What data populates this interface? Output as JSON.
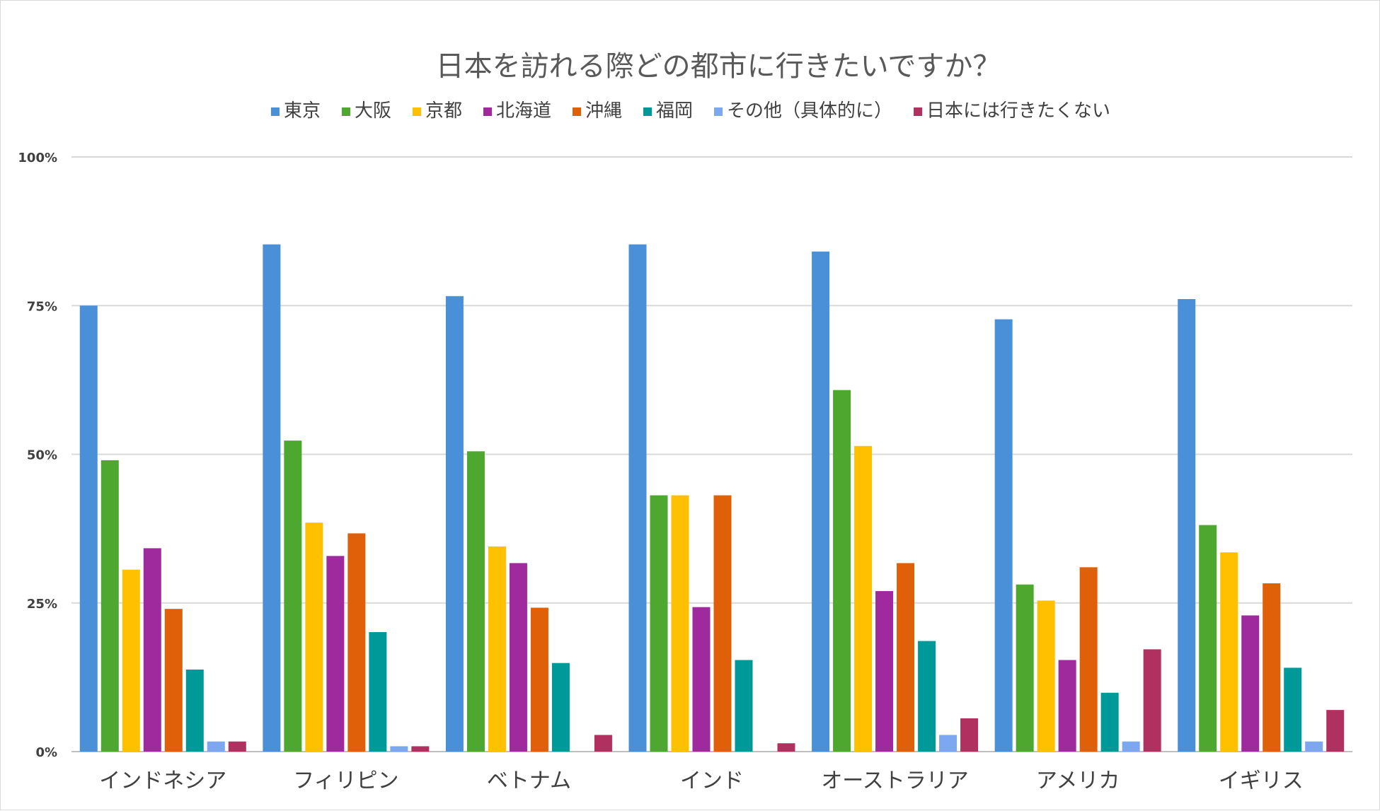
{
  "chart_data": {
    "type": "bar",
    "title": "日本を訪れる際どの都市に行きたいですか？",
    "categories": [
      "インドネシア",
      "フィリピン",
      "ベトナム",
      "インド",
      "オーストラリア",
      "アメリカ",
      "イギリス"
    ],
    "ylim": [
      0,
      100
    ],
    "yticks": [
      0,
      25,
      50,
      75,
      100
    ],
    "ytick_labels": [
      "0%",
      "25%",
      "50%",
      "75%",
      "100%"
    ],
    "grid": true,
    "legend_position": "top",
    "series": [
      {
        "name": "東京",
        "color": "#4A90D9",
        "values": [
          75,
          85.3,
          76.6,
          85.3,
          84.1,
          72.7,
          76.1
        ]
      },
      {
        "name": "大阪",
        "color": "#4EA72E",
        "values": [
          49,
          52.3,
          50.5,
          43.1,
          60.8,
          28.1,
          38.1
        ]
      },
      {
        "name": "京都",
        "color": "#FFC000",
        "values": [
          30.6,
          38.5,
          34.5,
          43.1,
          51.4,
          25.4,
          33.5
        ]
      },
      {
        "name": "北海道",
        "color": "#9E2A9E",
        "values": [
          34.2,
          32.9,
          31.7,
          24.3,
          27,
          15.4,
          22.9
        ]
      },
      {
        "name": "沖縄",
        "color": "#E0600A",
        "values": [
          24,
          36.7,
          24.2,
          43.1,
          31.7,
          31,
          28.3
        ]
      },
      {
        "name": "福岡",
        "color": "#009999",
        "values": [
          13.8,
          20.1,
          14.9,
          15.4,
          18.6,
          9.9,
          14.1
        ]
      },
      {
        "name": "その他（具体的に）",
        "color": "#7DA7F0",
        "values": [
          1.7,
          0.9,
          0,
          0,
          2.8,
          1.7,
          1.7
        ]
      },
      {
        "name": "日本には行きたくない",
        "color": "#B03060",
        "values": [
          1.7,
          0.9,
          2.8,
          1.4,
          5.6,
          17.2,
          7
        ]
      }
    ]
  }
}
